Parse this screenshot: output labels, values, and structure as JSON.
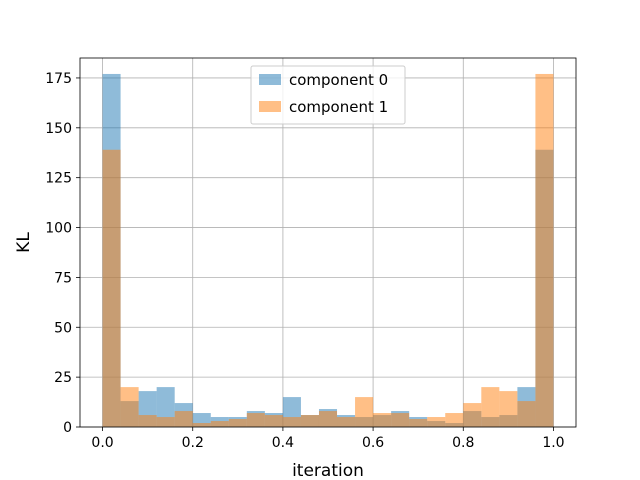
{
  "chart_data": {
    "type": "histogram",
    "title": "",
    "xlabel": "iteration",
    "ylabel": "KL",
    "xlim": [
      -0.05,
      1.05
    ],
    "ylim": [
      0,
      185
    ],
    "bins": 25,
    "bin_range": [
      0.0,
      1.0
    ],
    "x_ticks": [
      0.0,
      0.2,
      0.4,
      0.6,
      0.8,
      1.0
    ],
    "x_tick_labels": [
      "0.0",
      "0.2",
      "0.4",
      "0.6",
      "0.8",
      "1.0"
    ],
    "y_ticks": [
      0,
      25,
      50,
      75,
      100,
      125,
      150,
      175
    ],
    "y_tick_labels": [
      "0",
      "25",
      "50",
      "75",
      "100",
      "125",
      "150",
      "175"
    ],
    "grid": true,
    "legend_position": "upper-center",
    "series": [
      {
        "name": "component 0",
        "color": "#1f77b4",
        "alpha": 0.5,
        "values": [
          177,
          13,
          18,
          20,
          12,
          7,
          5,
          5,
          8,
          7,
          15,
          6,
          9,
          6,
          5,
          6,
          8,
          5,
          3,
          2,
          8,
          5,
          6,
          20,
          139
        ]
      },
      {
        "name": "component 1",
        "color": "#ff7f0e",
        "alpha": 0.5,
        "values": [
          139,
          20,
          6,
          5,
          8,
          2,
          3,
          4,
          7,
          6,
          5,
          6,
          8,
          5,
          15,
          7,
          7,
          4,
          5,
          7,
          12,
          20,
          18,
          13,
          177
        ]
      }
    ]
  }
}
